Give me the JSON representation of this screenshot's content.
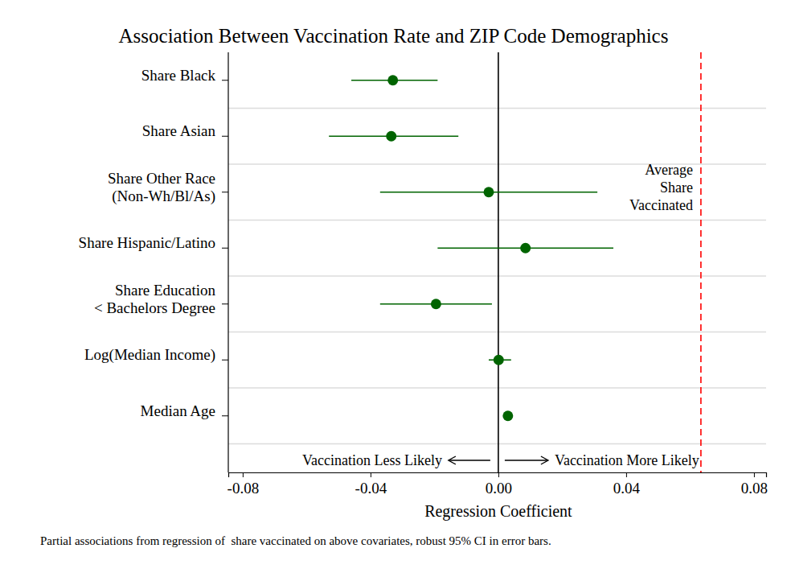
{
  "chart_data": {
    "type": "dot",
    "orientation": "horizontal",
    "title": "Association Between Vaccination Rate and ZIP Code Demographics",
    "x_label": "Regression Coefficient",
    "footnote": "Partial associations from regression of  share vaccinated on above covariates, robust 95% CI in error bars.",
    "categories": [
      "Share Black",
      "Share Asian",
      "Share Other Race\n(Non-Wh/Bl/As)",
      "Share Hispanic/Latino",
      "Share Education\n< Bachelors Degree",
      "Log(Median Income)",
      "Median Age"
    ],
    "values": [
      -0.033,
      -0.0335,
      -0.003,
      0.0085,
      -0.0195,
      0.0001,
      0.003
    ],
    "ci_lower": [
      -0.046,
      -0.053,
      -0.037,
      -0.019,
      -0.037,
      -0.003,
      0.0025
    ],
    "ci_upper": [
      -0.019,
      -0.0125,
      0.031,
      0.036,
      -0.002,
      0.004,
      0.0035
    ],
    "color": "#006400",
    "xlim": [
      -0.0845,
      0.0838
    ],
    "xticks": [
      -0.08,
      -0.04,
      {
        "value": 0,
        "label": "0.00"
      },
      0.04,
      0.08
    ],
    "grid": true,
    "reference_line": {
      "value": 0.0634,
      "label": "Average\nShare\nVaccinated",
      "color": "#ff0000",
      "line_style": "dashed"
    },
    "annotations": [
      "Vaccination Less Likely",
      "Vaccination More Likely"
    ]
  }
}
